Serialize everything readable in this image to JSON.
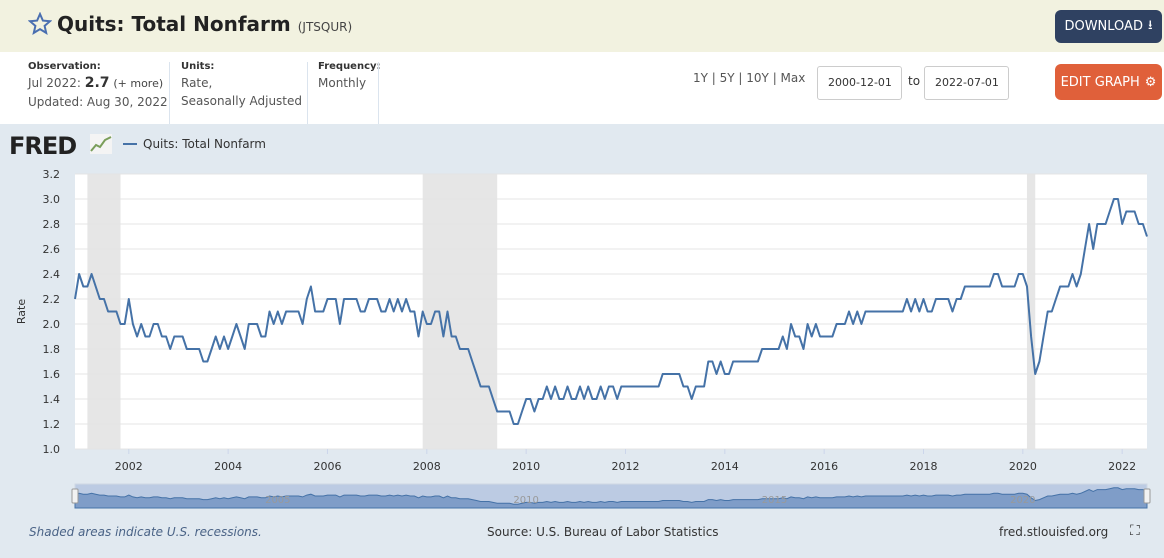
{
  "header": {
    "title": "Quits: Total Nonfarm",
    "series_id": "(JTSQUR)",
    "download_label": "DOWNLOAD",
    "edit_label": "EDIT GRAPH"
  },
  "info": {
    "observation_label": "Observation:",
    "observation_date": "Jul 2022:",
    "observation_value": "2.7",
    "more": "(+ more)",
    "updated": "Updated: Aug 30, 2022",
    "units_label": "Units:",
    "units_line1": "Rate,",
    "units_line2": "Seasonally Adjusted",
    "frequency_label": "Frequency:",
    "frequency": "Monthly"
  },
  "range": {
    "options": "1Y | 5Y | 10Y | Max",
    "start": "2000-12-01",
    "to": "to",
    "end": "2022-07-01"
  },
  "logo": "FRED",
  "footer": {
    "note": "Shaded areas indicate U.S. recessions.",
    "source": "Source: U.S. Bureau of Labor Statistics",
    "site": "fred.stlouisfed.org"
  },
  "colors": {
    "line": "#4572a7",
    "recession": "#e6e6e6"
  },
  "chart_data": {
    "type": "line",
    "title": "Quits: Total Nonfarm",
    "ylabel": "Rate",
    "xlabel": "",
    "ylim": [
      1.0,
      3.2
    ],
    "yticks": [
      "1.0",
      "1.2",
      "1.4",
      "1.6",
      "1.8",
      "2.0",
      "2.2",
      "2.4",
      "2.6",
      "2.8",
      "3.0",
      "3.2"
    ],
    "xticks": [
      "2002",
      "2004",
      "2006",
      "2008",
      "2010",
      "2012",
      "2014",
      "2016",
      "2018",
      "2020",
      "2022"
    ],
    "navigator_ticks": [
      "2005",
      "2010",
      "2015",
      "2020"
    ],
    "start": "2000-12",
    "frequency": "monthly",
    "legend": "Quits: Total Nonfarm",
    "legend_position": "top-left",
    "recessions": [
      [
        "2001-03",
        "2001-11"
      ],
      [
        "2007-12",
        "2009-06"
      ],
      [
        "2020-02",
        "2020-04"
      ]
    ],
    "series": [
      {
        "name": "Quits: Total Nonfarm",
        "values": [
          2.2,
          2.4,
          2.3,
          2.3,
          2.4,
          2.3,
          2.2,
          2.2,
          2.1,
          2.1,
          2.1,
          2.0,
          2.0,
          2.2,
          2.0,
          1.9,
          2.0,
          1.9,
          1.9,
          2.0,
          2.0,
          1.9,
          1.9,
          1.8,
          1.9,
          1.9,
          1.9,
          1.8,
          1.8,
          1.8,
          1.8,
          1.7,
          1.7,
          1.8,
          1.9,
          1.8,
          1.9,
          1.8,
          1.9,
          2.0,
          1.9,
          1.8,
          2.0,
          2.0,
          2.0,
          1.9,
          1.9,
          2.1,
          2.0,
          2.1,
          2.0,
          2.1,
          2.1,
          2.1,
          2.1,
          2.0,
          2.2,
          2.3,
          2.1,
          2.1,
          2.1,
          2.2,
          2.2,
          2.2,
          2.0,
          2.2,
          2.2,
          2.2,
          2.2,
          2.1,
          2.1,
          2.2,
          2.2,
          2.2,
          2.1,
          2.1,
          2.2,
          2.1,
          2.2,
          2.1,
          2.2,
          2.1,
          2.1,
          1.9,
          2.1,
          2.0,
          2.0,
          2.1,
          2.1,
          1.9,
          2.1,
          1.9,
          1.9,
          1.8,
          1.8,
          1.8,
          1.7,
          1.6,
          1.5,
          1.5,
          1.5,
          1.4,
          1.3,
          1.3,
          1.3,
          1.3,
          1.2,
          1.2,
          1.3,
          1.4,
          1.4,
          1.3,
          1.4,
          1.4,
          1.5,
          1.4,
          1.5,
          1.4,
          1.4,
          1.5,
          1.4,
          1.4,
          1.5,
          1.4,
          1.5,
          1.4,
          1.4,
          1.5,
          1.4,
          1.5,
          1.5,
          1.4,
          1.5,
          1.5,
          1.5,
          1.5,
          1.5,
          1.5,
          1.5,
          1.5,
          1.5,
          1.5,
          1.6,
          1.6,
          1.6,
          1.6,
          1.6,
          1.5,
          1.5,
          1.4,
          1.5,
          1.5,
          1.5,
          1.7,
          1.7,
          1.6,
          1.7,
          1.6,
          1.6,
          1.7,
          1.7,
          1.7,
          1.7,
          1.7,
          1.7,
          1.7,
          1.8,
          1.8,
          1.8,
          1.8,
          1.8,
          1.9,
          1.8,
          2.0,
          1.9,
          1.9,
          1.8,
          2.0,
          1.9,
          2.0,
          1.9,
          1.9,
          1.9,
          1.9,
          2.0,
          2.0,
          2.0,
          2.1,
          2.0,
          2.1,
          2.0,
          2.1,
          2.1,
          2.1,
          2.1,
          2.1,
          2.1,
          2.1,
          2.1,
          2.1,
          2.1,
          2.2,
          2.1,
          2.2,
          2.1,
          2.2,
          2.1,
          2.1,
          2.2,
          2.2,
          2.2,
          2.2,
          2.1,
          2.2,
          2.2,
          2.3,
          2.3,
          2.3,
          2.3,
          2.3,
          2.3,
          2.3,
          2.4,
          2.4,
          2.3,
          2.3,
          2.3,
          2.3,
          2.4,
          2.4,
          2.3,
          1.9,
          1.6,
          1.7,
          1.9,
          2.1,
          2.1,
          2.2,
          2.3,
          2.3,
          2.3,
          2.4,
          2.3,
          2.4,
          2.6,
          2.8,
          2.6,
          2.8,
          2.8,
          2.8,
          2.9,
          3.0,
          3.0,
          2.8,
          2.9,
          2.9,
          2.9,
          2.8,
          2.8,
          2.7
        ]
      }
    ]
  }
}
